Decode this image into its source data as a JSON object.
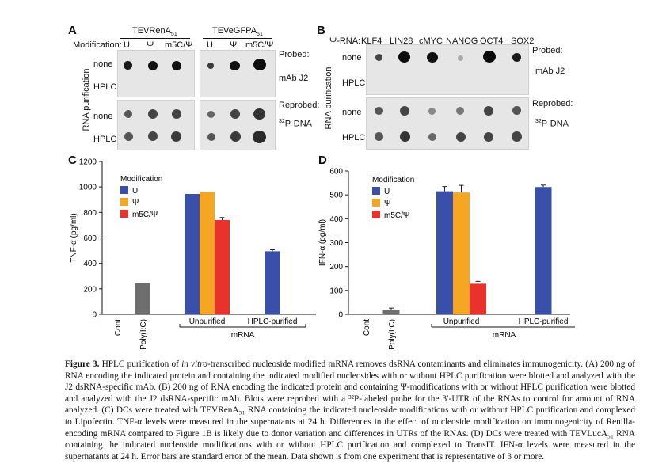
{
  "panelA": {
    "letter": "A",
    "construct1": "TEVRenA",
    "construct1_sub": "51",
    "construct2": "TEVeGFPA",
    "construct2_sub": "51",
    "mod_label": "Modification:",
    "mods": [
      "U",
      "Ψ",
      "m5C/Ψ",
      "U",
      "Ψ",
      "m5C/Ψ"
    ],
    "rows": [
      "none",
      "HPLC",
      "none",
      "HPLC"
    ],
    "side_label": "RNA purification",
    "probed": "Probed:",
    "probe1": "mAb J2",
    "reprobed": "Reprobed:",
    "probe2": "P-DNA",
    "probe2_sup": "32"
  },
  "panelB": {
    "letter": "B",
    "rna_label": "Ψ-RNA:",
    "genes": [
      "KLF4",
      "LIN28",
      "cMYC",
      "NANOG",
      "OCT4",
      "SOX2"
    ],
    "rows": [
      "none",
      "HPLC",
      "none",
      "HPLC"
    ],
    "side_label": "RNA purification",
    "probed": "Probed:",
    "probe1": "mAb J2",
    "reprobed": "Reprobed:",
    "probe2": "P-DNA",
    "probe2_sup": "32"
  },
  "chart_data": [
    {
      "panel": "C",
      "type": "bar",
      "ylabel": "TNF-α (pg/ml)",
      "ylim": [
        0,
        1200
      ],
      "yticks": [
        0,
        200,
        400,
        600,
        800,
        1000,
        1200
      ],
      "legend_title": "Modification",
      "legend": [
        "U",
        "Ψ",
        "m5C/Ψ"
      ],
      "colors": {
        "U": "#3a4fa8",
        "Ψ": "#f5a623",
        "m5C/Ψ": "#e8322b",
        "control": "#6e6e6e"
      },
      "categories": [
        "Cont",
        "Poly(I:C)",
        "Unpurified",
        "HPLC-purified"
      ],
      "group_labels": [
        "Unpurified",
        "HPLC-purified"
      ],
      "xlabel": "mRNA",
      "bars": [
        {
          "category": "Poly(I:C)",
          "series": "control",
          "value": 245
        },
        {
          "category": "Unpurified",
          "series": "U",
          "value": 945
        },
        {
          "category": "Unpurified",
          "series": "Ψ",
          "value": 960
        },
        {
          "category": "Unpurified",
          "series": "m5C/Ψ",
          "value": 740,
          "error": 20
        },
        {
          "category": "HPLC-purified",
          "series": "U",
          "value": 495,
          "error": 12
        }
      ]
    },
    {
      "panel": "D",
      "type": "bar",
      "ylabel": "IFN-α (pg/ml)",
      "ylim": [
        0,
        600
      ],
      "yticks": [
        0,
        100,
        200,
        300,
        400,
        500,
        600
      ],
      "legend_title": "Modification",
      "legend": [
        "U",
        "Ψ",
        "m5C/Ψ"
      ],
      "colors": {
        "U": "#3a4fa8",
        "Ψ": "#f5a623",
        "m5C/Ψ": "#e8322b",
        "control": "#6e6e6e"
      },
      "categories": [
        "Cont",
        "Poly(I:C)",
        "Unpurified",
        "HPLC-purified"
      ],
      "group_labels": [
        "Unpurified",
        "HPLC-purified"
      ],
      "xlabel": "mRNA",
      "bars": [
        {
          "category": "Poly(I:C)",
          "series": "control",
          "value": 18,
          "error": 8
        },
        {
          "category": "Unpurified",
          "series": "U",
          "value": 515,
          "error": 20
        },
        {
          "category": "Unpurified",
          "series": "Ψ",
          "value": 510,
          "error": 30
        },
        {
          "category": "Unpurified",
          "series": "m5C/Ψ",
          "value": 128,
          "error": 10
        },
        {
          "category": "HPLC-purified",
          "series": "U",
          "value": 533,
          "error": 8
        }
      ]
    }
  ],
  "caption": {
    "fig": "Figure 3.",
    "l1a": "HPLC purification of ",
    "l1b": "in vitro",
    "l1c": "-transcribed nucleoside modified mRNA removes dsRNA contaminants and eliminates immunogenicity.",
    "l2": "(A) 200 ng of RNA encoding the indicated protein and containing the indicated modified nucleosides with or without HPLC purification were blotted and analyzed with the J2 dsRNA-specific mAb. (B) 200 ng of RNA encoding the indicated protein and containing Ψ-modifications with or without HPLC purification were blotted and analyzed with the J2 dsRNA-specific mAb. Blots were reprobed with a ³²P-labeled probe for the 3′-UTR of the RNAs to control for amount of RNA analyzed. (C) DCs were treated with TEVRenA₅₁ RNA containing the indicated nucleoside modifications with or without HPLC purification and complexed to Lipofectin. TNF-α levels were measured in the supernatants at 24 h. Differences in the effect of nucleoside modification on immunogenicity of Renilla-encoding mRNA compared to Figure 1B is likely due to donor variation and differences in UTRs of the RNAs. (D) DCs were treated with TEVLucA₅₁ RNA containing the indicated nucleoside modifications with or without HPLC purification and complexed to TransIT. IFN-α levels were measured in the supernatants at 24 h. Error bars are standard error of the mean. Data shown is from one experiment that is representative of 3 or more."
  }
}
